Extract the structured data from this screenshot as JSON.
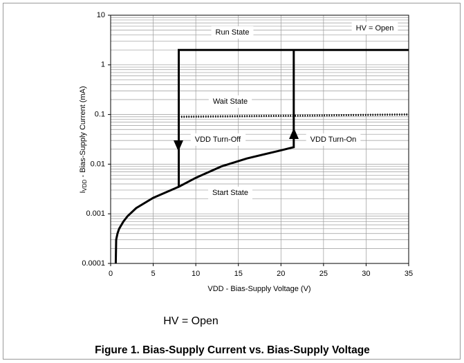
{
  "chart_data": {
    "type": "line",
    "title": "Figure 1.  Bias-Supply Current vs. Bias-Supply Voltage",
    "subtitle": "HV = Open",
    "x_label": "VDD - Bias-Supply Voltage  (V)",
    "y_label": {
      "main": "I",
      "sub": "VDD",
      "rest": " - Bias-Supply Current  (mA)"
    },
    "xlim": [
      0,
      35
    ],
    "xticks": [
      0,
      5,
      10,
      15,
      20,
      25,
      30,
      35
    ],
    "ylim": [
      0.0001,
      10
    ],
    "yticks": [
      0.0001,
      0.001,
      0.01,
      0.1,
      1,
      10
    ],
    "log_y": true,
    "grid": true,
    "series": [
      {
        "color": "#000000",
        "style": "solid",
        "x": [
          0.6,
          0.65,
          0.8,
          1,
          1.5,
          2,
          3,
          5,
          8,
          10,
          13,
          16,
          20,
          21.5,
          21.5
        ],
        "values": [
          0.0001,
          0.0003,
          0.0004,
          0.0005,
          0.0007,
          0.0009,
          0.0013,
          0.0021,
          0.0035,
          0.0053,
          0.009,
          0.013,
          0.019,
          0.022,
          2
        ]
      },
      {
        "color": "#000000",
        "style": "solid",
        "x": [
          8,
          8,
          35
        ],
        "values": [
          0.0035,
          2,
          2
        ]
      },
      {
        "color": "#000000",
        "style": "dotted",
        "x": [
          8,
          35
        ],
        "values": [
          0.09,
          0.1
        ]
      }
    ],
    "annotations": [
      "Run State",
      "HV = Open",
      "Wait State",
      "VDD Turn-Off",
      "VDD Turn-On",
      "Start State"
    ]
  }
}
